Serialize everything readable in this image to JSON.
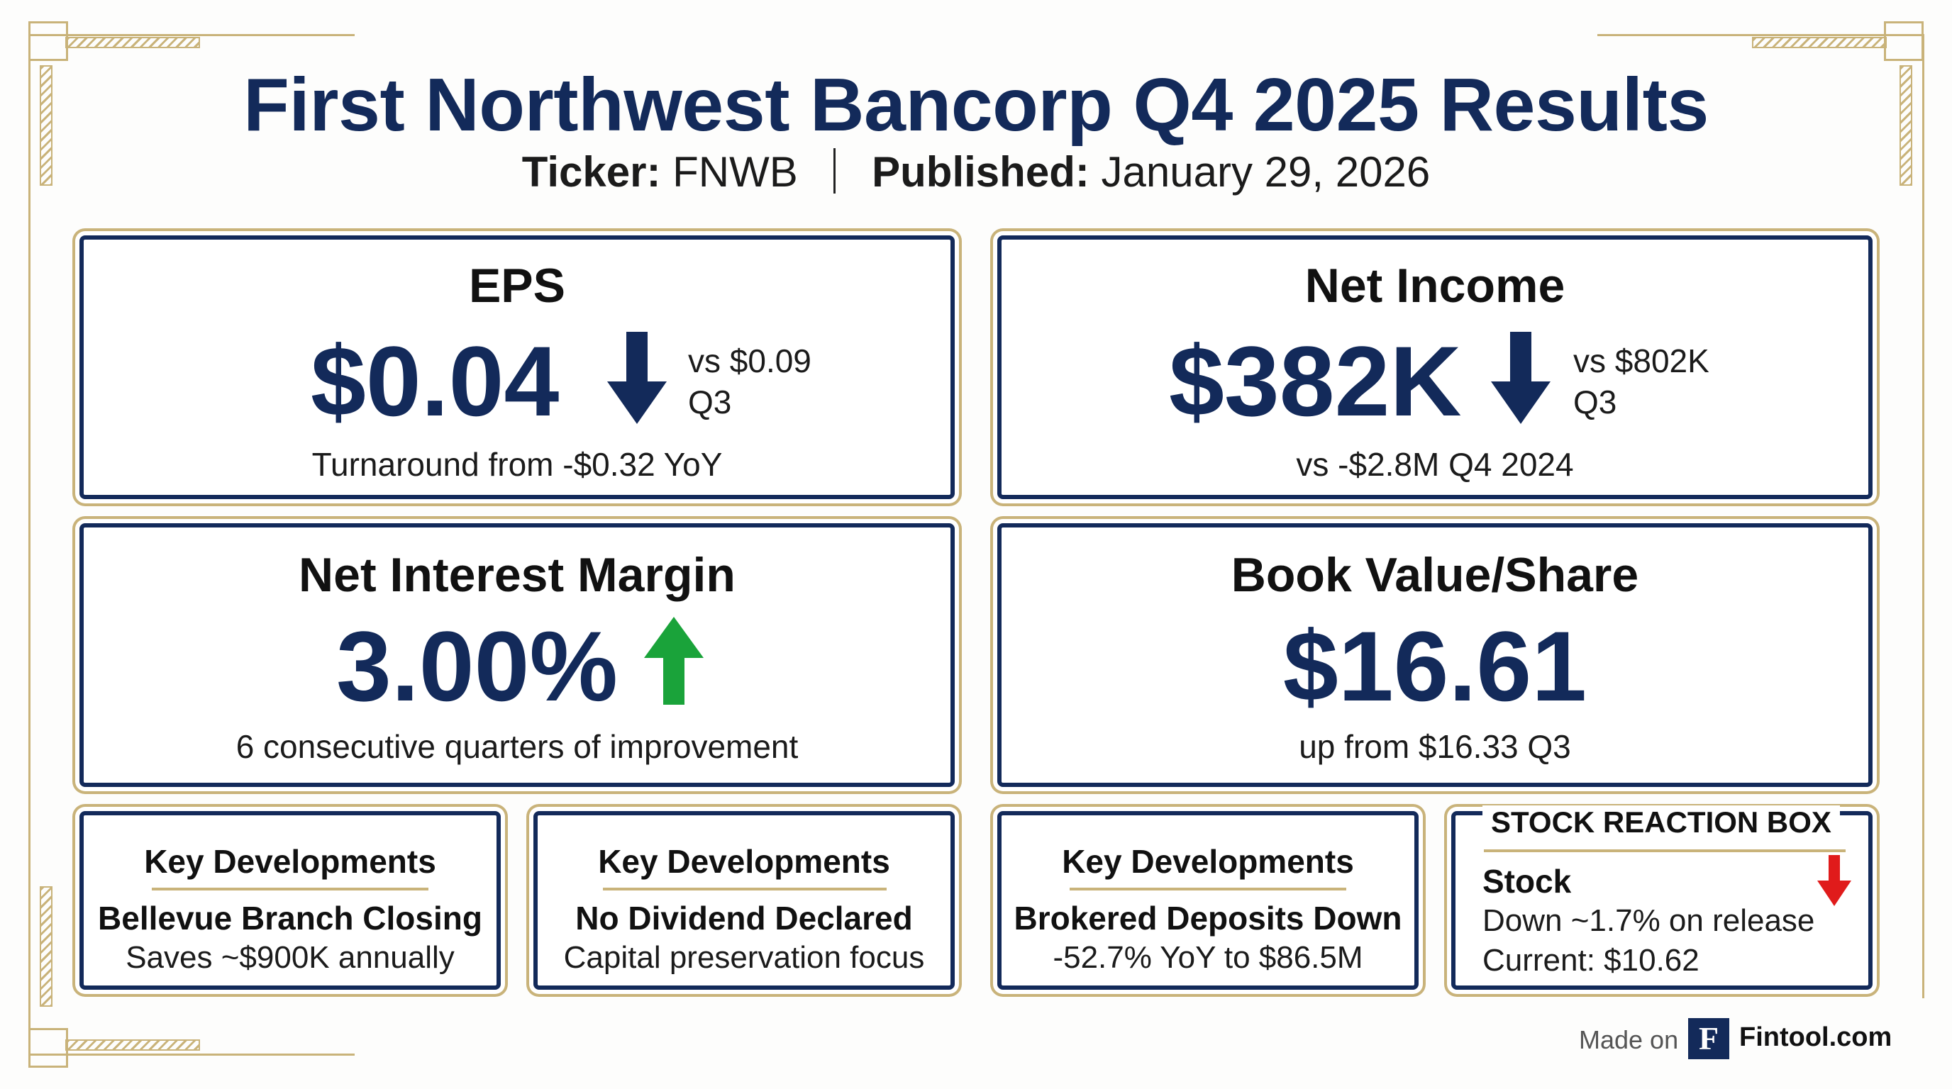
{
  "header": {
    "title": "First Northwest Bancorp Q4 2025 Results",
    "ticker_label": "Ticker:",
    "ticker_value": "FNWB",
    "published_label": "Published:",
    "published_value": "January 29, 2026"
  },
  "eps": {
    "label": "EPS",
    "value": "$0.04",
    "trend": "down",
    "compare_line1": "vs $0.09",
    "compare_line2": "Q3",
    "note": "Turnaround from -$0.32 YoY"
  },
  "net_income": {
    "label": "Net Income",
    "value": "$382K",
    "trend": "down",
    "compare_line1": "vs $802K",
    "compare_line2": "Q3",
    "note": "vs -$2.8M Q4 2024"
  },
  "nim": {
    "label": "Net Interest Margin",
    "value": "3.00%",
    "trend": "up",
    "note": "6 consecutive quarters of improvement"
  },
  "bvps": {
    "label": "Book Value/Share",
    "value": "$16.61",
    "note": "up from $16.33 Q3"
  },
  "developments": [
    {
      "heading": "Key Developments",
      "title": "Bellevue Branch Closing",
      "detail": "Saves ~$900K annually"
    },
    {
      "heading": "Key Developments",
      "title": "No Dividend Declared",
      "detail": "Capital preservation focus"
    },
    {
      "heading": "Key Developments",
      "title": "Brokered Deposits Down",
      "detail": "-52.7% YoY to $86.5M"
    }
  ],
  "stock_reaction": {
    "heading": "STOCK REACTION BOX",
    "label": "Stock",
    "trend": "down",
    "move": "Down ~1.7% on release",
    "current": "Current: $10.62"
  },
  "footer": {
    "made_on": "Made on",
    "logo_letter": "F",
    "brand": "Fintool.com"
  },
  "colors": {
    "navy": "#132a5a",
    "gold": "#c9b37a",
    "up_green": "#1aa33a",
    "down_red": "#e01b1b"
  }
}
